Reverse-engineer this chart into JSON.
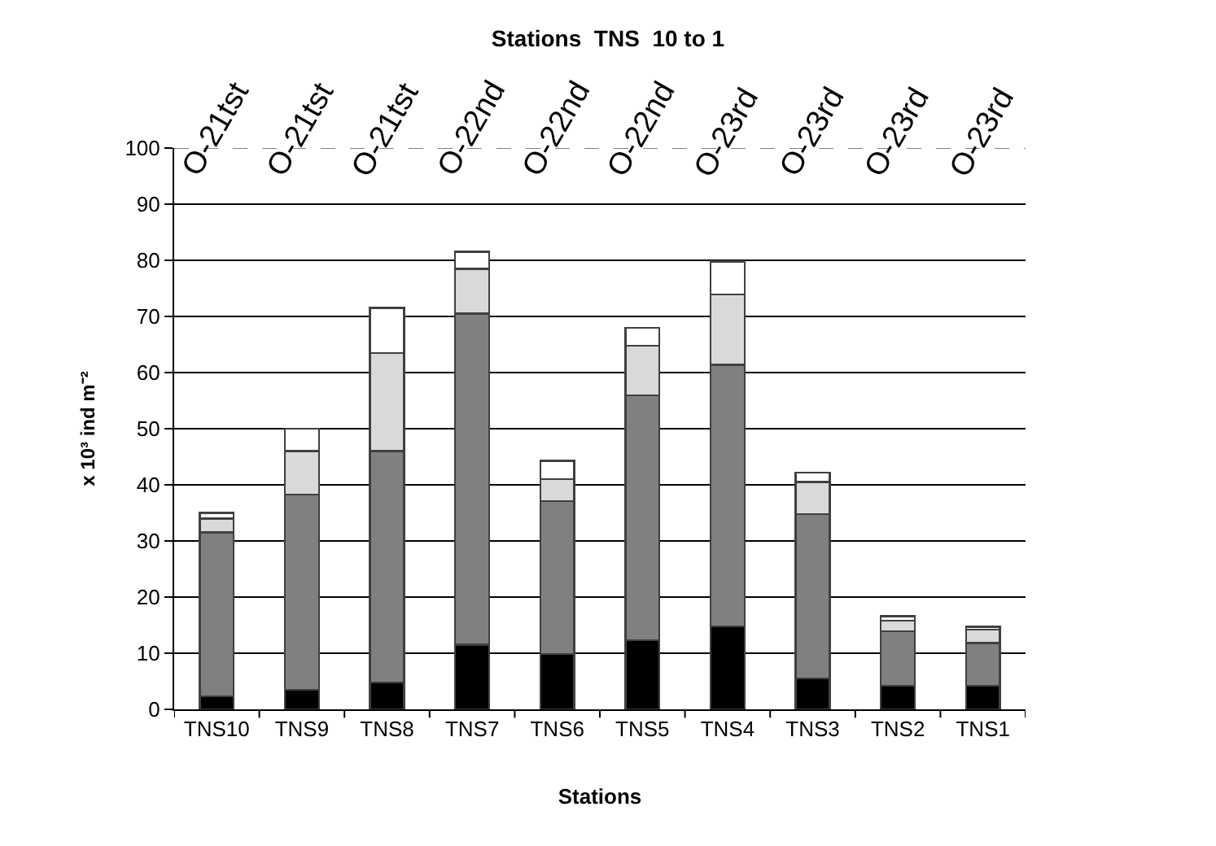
{
  "chart_data": {
    "type": "bar",
    "stacked": true,
    "title": "Stations  TNS  10 to 1",
    "xlabel": "Stations",
    "ylabel": "x 10³ ind m⁻²",
    "categories": [
      "TNS10",
      "TNS9",
      "TNS8",
      "TNS7",
      "TNS6",
      "TNS5",
      "TNS4",
      "TNS3",
      "TNS2",
      "TNS1"
    ],
    "series": [
      {
        "color": "#000000",
        "values": [
          2.3,
          3.5,
          4.8,
          11.5,
          9.9,
          12.3,
          14.8,
          5.5,
          4.2,
          4.2
        ]
      },
      {
        "color": "#808080",
        "values": [
          29.2,
          34.8,
          41.2,
          59,
          27.2,
          43.6,
          46.6,
          29.3,
          9.7,
          7.6
        ]
      },
      {
        "color": "#d9d9d9",
        "values": [
          2.5,
          7.7,
          17.5,
          8,
          3.9,
          8.9,
          12.5,
          5.7,
          1.9,
          2.4
        ]
      },
      {
        "color": "#ffffff",
        "values": [
          1,
          4,
          8,
          3,
          3.3,
          3.2,
          5.9,
          1.7,
          0.8,
          0.5
        ]
      }
    ],
    "ylim": [
      0,
      100
    ],
    "yticks": [
      0,
      10,
      20,
      30,
      40,
      50,
      60,
      70,
      80,
      90,
      100
    ],
    "grid": "y",
    "ref_lines": [
      {
        "axis": "y",
        "value": 100,
        "color": "#808080",
        "line_style": "dashed"
      }
    ],
    "annotations": [
      "O-21tst",
      "O-21tst",
      "O-21tst",
      "O-22nd",
      "O-22nd",
      "O-22nd",
      "O-23rd",
      "O-23rd",
      "O-23rd",
      "O-23rd"
    ]
  }
}
